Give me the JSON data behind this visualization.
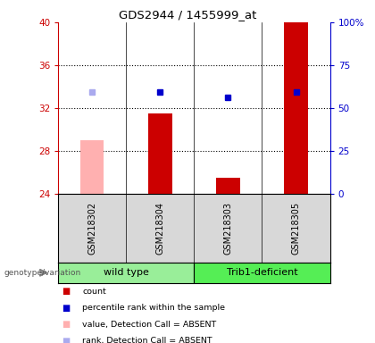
{
  "title": "GDS2944 / 1455999_at",
  "samples": [
    "GSM218302",
    "GSM218304",
    "GSM218303",
    "GSM218305"
  ],
  "ylim_left": [
    24,
    40
  ],
  "ylim_right": [
    0,
    100
  ],
  "yticks_left": [
    24,
    28,
    32,
    36,
    40
  ],
  "yticks_right": [
    0,
    25,
    50,
    75,
    100
  ],
  "bar_values": [
    29.0,
    31.5,
    25.5,
    40.0
  ],
  "bar_colors": [
    "#ffb0b0",
    "#cc0000",
    "#cc0000",
    "#cc0000"
  ],
  "rank_values": [
    33.5,
    33.5,
    33.0,
    33.5
  ],
  "rank_colors": [
    "#aaaaee",
    "#0000cc",
    "#0000cc",
    "#0000cc"
  ],
  "group_color_wt": "#99ee99",
  "group_color_t1": "#55ee55",
  "left_axis_color": "#cc0000",
  "right_axis_color": "#0000cc",
  "legend_items": [
    {
      "label": "count",
      "color": "#cc0000"
    },
    {
      "label": "percentile rank within the sample",
      "color": "#0000cc"
    },
    {
      "label": "value, Detection Call = ABSENT",
      "color": "#ffb0b0"
    },
    {
      "label": "rank, Detection Call = ABSENT",
      "color": "#aaaaee"
    }
  ],
  "bar_width": 0.35,
  "chart_facecolor": "white",
  "sample_label_facecolor": "#d8d8d8",
  "grid_yticks": [
    28,
    32,
    36
  ]
}
